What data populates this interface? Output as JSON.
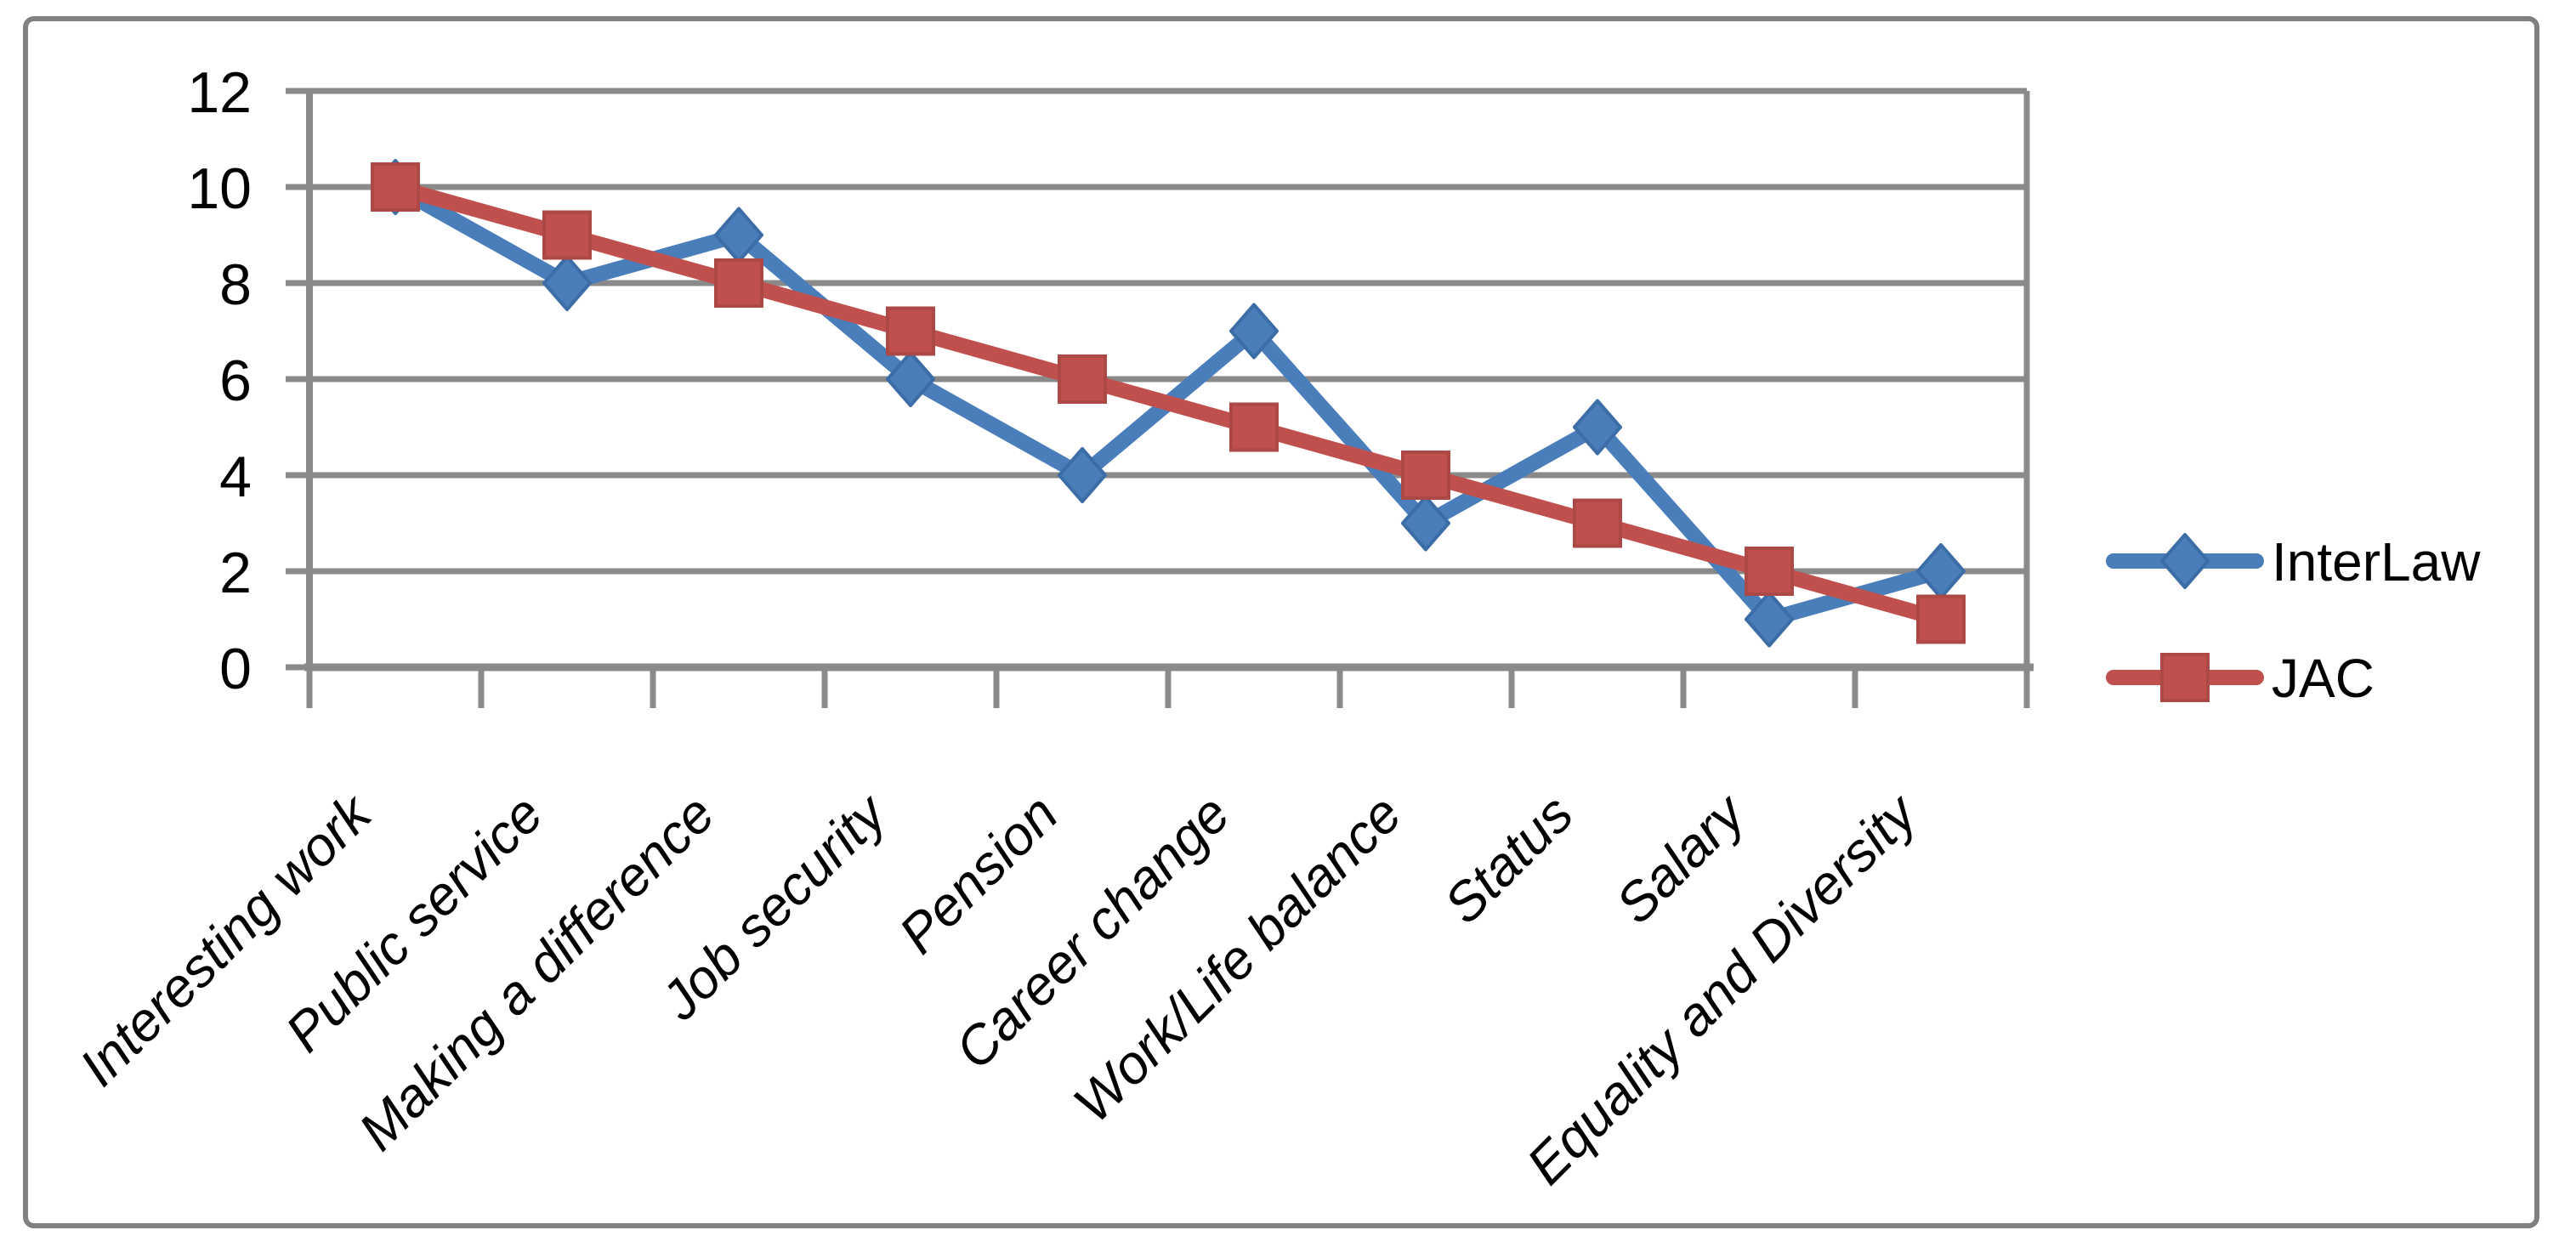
{
  "chart_data": {
    "type": "line",
    "title": "",
    "categories": [
      "Interesting work",
      "Public service",
      "Making a difference",
      "Job security",
      "Pension",
      "Career change",
      "Work/Life balance",
      "Status",
      "Salary",
      "Equality and Diversity"
    ],
    "series": [
      {
        "name": "InterLaw",
        "marker": "diamond",
        "color": "#4A7EBB",
        "marker_border": "#3D6DA6",
        "values": [
          10,
          8,
          9,
          6,
          4,
          7,
          3,
          5,
          1,
          2
        ]
      },
      {
        "name": "JAC",
        "marker": "square",
        "color": "#C0504D",
        "marker_border": "#AC4845",
        "values": [
          10,
          9,
          8,
          7,
          6,
          5,
          4,
          3,
          2,
          1
        ]
      }
    ],
    "yticks": [
      0,
      2,
      4,
      6,
      8,
      10,
      12
    ],
    "ylim": [
      0,
      12
    ],
    "xlabel": "",
    "ylabel": "",
    "grid": true,
    "legend_position": "right",
    "x_label_rotation_deg": -45
  },
  "colors": {
    "background": "#FFFFFF",
    "gridline": "#8A8A8A",
    "axis": "#8A8A8A",
    "chart_border": "#808080",
    "label_text": "#000000"
  }
}
